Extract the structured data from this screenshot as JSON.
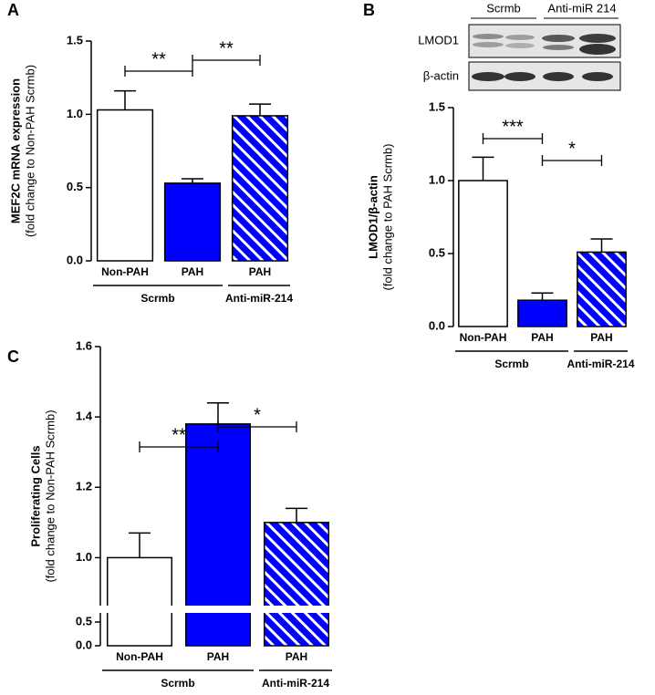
{
  "chart_data": [
    {
      "type": "bar",
      "panel": "A",
      "ylabel": [
        "MEF2C mRNA expression",
        "(fold change to Non-PAH Scrmb)"
      ],
      "categories": [
        "Non-PAH",
        "PAH",
        "PAH"
      ],
      "groups": [
        "Scrmb",
        "Scrmb",
        "Anti-miR-214"
      ],
      "values": [
        1.03,
        0.53,
        0.99
      ],
      "errors": [
        0.13,
        0.03,
        0.08
      ],
      "colors": [
        "#ffffff",
        "#0000ff",
        "#0000ff"
      ],
      "hatched": [
        false,
        false,
        true
      ],
      "ylim": [
        0,
        1.5
      ],
      "yticks": [
        {
          "value": 0,
          "label": "0.0"
        },
        0.5,
        {
          "value": 1,
          "label": "1.0"
        },
        1.5
      ],
      "annotations": [
        {
          "text": "**",
          "between": [
            0,
            1
          ]
        },
        {
          "text": "**",
          "between": [
            1,
            2
          ]
        }
      ]
    },
    {
      "type": "bar",
      "panel": "B",
      "ylabel": [
        "LMOD1/β-actin",
        "(fold change to PAH Scrmb)"
      ],
      "blot": {
        "columns": [
          "Scrmb",
          "Anti-miR 214"
        ],
        "rows": [
          "LMOD1",
          "β-actin"
        ]
      },
      "categories": [
        "Non-PAH",
        "PAH",
        "PAH"
      ],
      "groups": [
        "Scrmb",
        "Scrmb",
        "Anti-miR-214"
      ],
      "values": [
        1.0,
        0.18,
        0.51
      ],
      "errors": [
        0.16,
        0.05,
        0.09
      ],
      "colors": [
        "#ffffff",
        "#0000ff",
        "#0000ff"
      ],
      "hatched": [
        false,
        false,
        true
      ],
      "ylim": [
        0,
        1.5
      ],
      "yticks": [
        {
          "value": 0,
          "label": "0.0"
        },
        0.5,
        {
          "value": 1,
          "label": "1.0"
        },
        1.5
      ],
      "annotations": [
        {
          "text": "***",
          "between": [
            0,
            1
          ]
        },
        {
          "text": "*",
          "between": [
            1,
            2
          ]
        }
      ]
    },
    {
      "type": "bar",
      "panel": "C",
      "ylabel": [
        "Proliferating Cells",
        "(fold change to Non-PAH Scrmb)"
      ],
      "categories": [
        "Non-PAH",
        "PAH",
        "PAH"
      ],
      "groups": [
        "Scrmb",
        "Scrmb",
        "Anti-miR-214"
      ],
      "values": [
        1.0,
        1.38,
        1.1
      ],
      "errors": [
        0.07,
        0.06,
        0.04
      ],
      "colors": [
        "#ffffff",
        "#0000ff",
        "#0000ff"
      ],
      "hatched": [
        false,
        false,
        true
      ],
      "ylim": [
        0,
        1.6
      ],
      "axis_break": [
        0.5,
        0.9
      ],
      "yticks": [
        {
          "value": 0,
          "label": "0.0"
        },
        0.5,
        {
          "value": 1,
          "label": "1.0"
        },
        1.2,
        1.4,
        1.6
      ],
      "annotations": [
        {
          "text": "**",
          "between": [
            0,
            1
          ]
        },
        {
          "text": "*",
          "between": [
            1,
            2
          ]
        }
      ]
    }
  ]
}
